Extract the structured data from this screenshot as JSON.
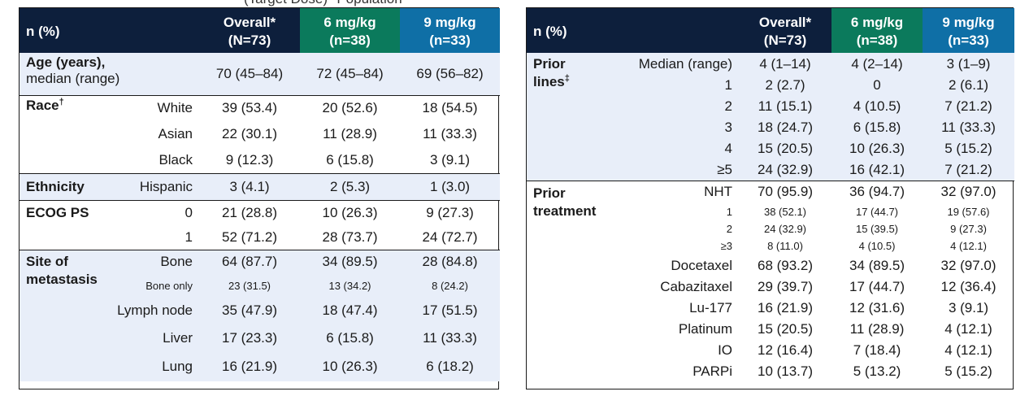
{
  "header_fragment": "(Target Dose)* Population",
  "columns": {
    "label": "n (%)",
    "overall": [
      "Overall*",
      "(N=73)"
    ],
    "dose6": [
      "6 mg/kg",
      "(n=38)"
    ],
    "dose9": [
      "9 mg/kg",
      "(n=33)"
    ]
  },
  "left": {
    "age": {
      "label": "Age (years),",
      "sub": "median (range)",
      "values": [
        "70 (45–84)",
        "72 (45–84)",
        "69 (56–82)"
      ]
    },
    "race": {
      "label": "Race",
      "sup": "†",
      "rows": [
        {
          "sub": "White",
          "values": [
            "39 (53.4)",
            "20 (52.6)",
            "18 (54.5)"
          ]
        },
        {
          "sub": "Asian",
          "values": [
            "22 (30.1)",
            "11 (28.9)",
            "11 (33.3)"
          ]
        },
        {
          "sub": "Black",
          "values": [
            "9 (12.3)",
            "6 (15.8)",
            "3 (9.1)"
          ]
        }
      ]
    },
    "ethnicity": {
      "label": "Ethnicity",
      "rows": [
        {
          "sub": "Hispanic",
          "values": [
            "3 (4.1)",
            "2 (5.3)",
            "1 (3.0)"
          ]
        }
      ]
    },
    "ecog": {
      "label": "ECOG PS",
      "rows": [
        {
          "sub": "0",
          "values": [
            "21 (28.8)",
            "10 (26.3)",
            "9 (27.3)"
          ]
        },
        {
          "sub": "1",
          "values": [
            "52 (71.2)",
            "28 (73.7)",
            "24 (72.7)"
          ]
        }
      ]
    },
    "site": {
      "label1": "Site of",
      "label2": "metastasis",
      "rows": [
        {
          "sub": "Bone",
          "values": [
            "64 (87.7)",
            "34 (89.5)",
            "28 (84.8)"
          ]
        },
        {
          "sub": "Bone only",
          "values": [
            "23 (31.5)",
            "13 (34.2)",
            "8 (24.2)"
          ]
        },
        {
          "sub": "Lymph node",
          "values": [
            "35 (47.9)",
            "18 (47.4)",
            "17 (51.5)"
          ]
        },
        {
          "sub": "Liver",
          "values": [
            "17 (23.3)",
            "6 (15.8)",
            "11 (33.3)"
          ]
        },
        {
          "sub": "Lung",
          "values": [
            "16 (21.9)",
            "10 (26.3)",
            "6 (18.2)"
          ]
        }
      ]
    }
  },
  "right": {
    "prior_lines": {
      "label1": "Prior",
      "label2": "lines",
      "sup": "‡",
      "rows": [
        {
          "sub": "Median (range)",
          "values": [
            "4 (1–14)",
            "4 (2–14)",
            "3 (1–9)"
          ]
        },
        {
          "sub": "1",
          "values": [
            "2 (2.7)",
            "0",
            "2 (6.1)"
          ]
        },
        {
          "sub": "2",
          "values": [
            "11 (15.1)",
            "4 (10.5)",
            "7 (21.2)"
          ]
        },
        {
          "sub": "3",
          "values": [
            "18 (24.7)",
            "6 (15.8)",
            "11 (33.3)"
          ]
        },
        {
          "sub": "4",
          "values": [
            "15 (20.5)",
            "10 (26.3)",
            "5 (15.2)"
          ]
        },
        {
          "sub": "≥5",
          "values": [
            "24 (32.9)",
            "16 (42.1)",
            "7 (21.2)"
          ]
        }
      ]
    },
    "prior_treatment": {
      "label1": "Prior",
      "label2": "treatment",
      "rows": [
        {
          "sub": "NHT",
          "values": [
            "70 (95.9)",
            "36 (94.7)",
            "32 (97.0)"
          ]
        },
        {
          "sub": "1",
          "values": [
            "38 (52.1)",
            "17 (44.7)",
            "19 (57.6)"
          ]
        },
        {
          "sub": "2",
          "values": [
            "24 (32.9)",
            "15 (39.5)",
            "9 (27.3)"
          ]
        },
        {
          "sub": "≥3",
          "values": [
            "8 (11.0)",
            "4 (10.5)",
            "4 (12.1)"
          ]
        },
        {
          "sub": "Docetaxel",
          "values": [
            "68 (93.2)",
            "34 (89.5)",
            "32 (97.0)"
          ]
        },
        {
          "sub": "Cabazitaxel",
          "values": [
            "29 (39.7)",
            "17 (44.7)",
            "12 (36.4)"
          ]
        },
        {
          "sub": "Lu-177",
          "values": [
            "16 (21.9)",
            "12 (31.6)",
            "3 (9.1)"
          ]
        },
        {
          "sub": "Platinum",
          "values": [
            "15 (20.5)",
            "11 (28.9)",
            "4 (12.1)"
          ]
        },
        {
          "sub": "IO",
          "values": [
            "12 (16.4)",
            "7 (18.4)",
            "4 (12.1)"
          ]
        },
        {
          "sub": "PARPi",
          "values": [
            "10 (13.7)",
            "5 (13.2)",
            "5 (15.2)"
          ]
        }
      ]
    }
  },
  "colors": {
    "header_navy": "#0d1f3c",
    "header_green": "#0b7a5c",
    "header_blue": "#0f6fa6",
    "row_tint": "#e8eef9"
  }
}
